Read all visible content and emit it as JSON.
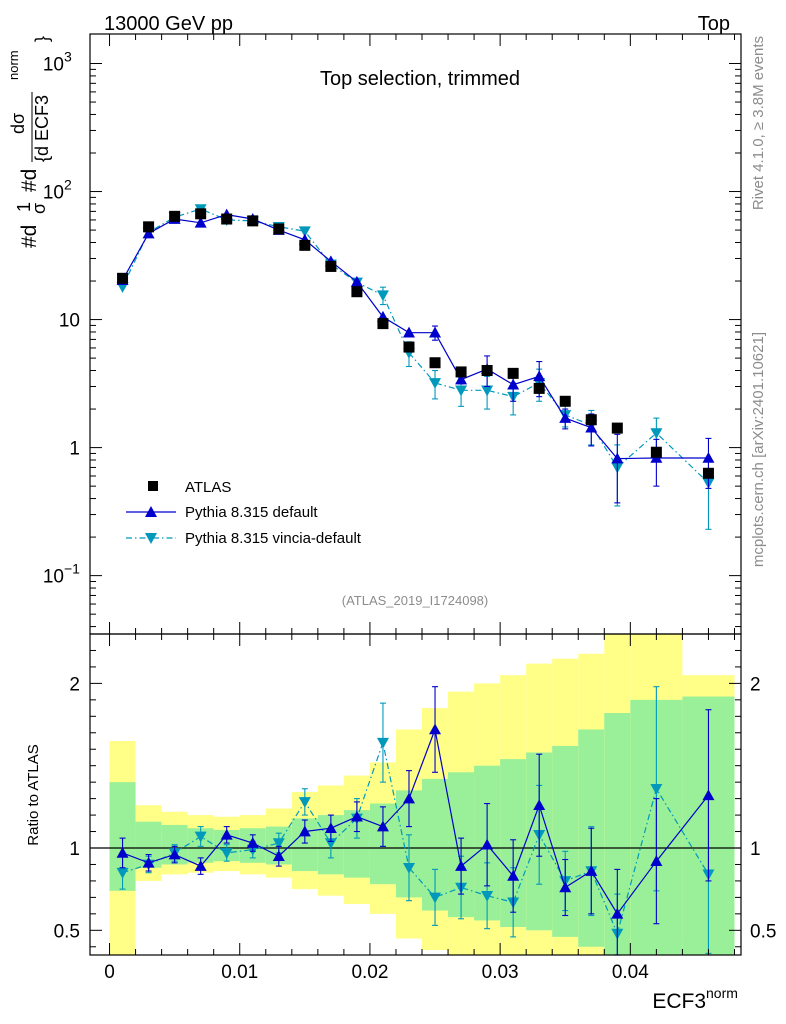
{
  "header": {
    "left": "13000 GeV pp",
    "right": "Top"
  },
  "side": {
    "top": "Rivet 4.1.0, ≥ 3.8M events",
    "bottom": "mcplots.cern.ch [arXiv:2401.10621]"
  },
  "chart_data": {
    "type": "scatter",
    "title": "Top selection, trimmed",
    "analysis_id": "(ATLAS_2019_I1724098)",
    "xlabel": "ECF3",
    "xlabel_sup": "norm",
    "ylabel": "#d¹/σ #d dσ/{d ECF3 norm}",
    "ylabel_parts": {
      "a": "#d",
      "b": "1",
      "c": "σ",
      "d": "#d",
      "e": "dσ",
      "f": "{d ECF3",
      "g": "norm",
      "h": "}"
    },
    "ratio_ylabel": "Ratio to ATLAS",
    "xlim": [
      -0.0015,
      0.0485
    ],
    "ylim": [
      0.035,
      1700
    ],
    "ratio_ylim": [
      0.35,
      2.3
    ],
    "x_ticks": [
      {
        "v": 0,
        "label": "0"
      },
      {
        "v": 0.01,
        "label": "0.01"
      },
      {
        "v": 0.02,
        "label": "0.02"
      },
      {
        "v": 0.03,
        "label": "0.03"
      },
      {
        "v": 0.04,
        "label": "0.04"
      }
    ],
    "y_ticks": [
      {
        "v": 0.1,
        "base": "10",
        "exp": "−1"
      },
      {
        "v": 1,
        "base": "1",
        "exp": ""
      },
      {
        "v": 10,
        "base": "10",
        "exp": ""
      },
      {
        "v": 100,
        "base": "10",
        "exp": "2"
      },
      {
        "v": 1000,
        "base": "10",
        "exp": "3"
      }
    ],
    "ratio_ticks": [
      {
        "v": 0.5,
        "label": "0.5"
      },
      {
        "v": 1,
        "label": "1"
      },
      {
        "v": 2,
        "label": "2"
      }
    ],
    "bin_edges": [
      0,
      0.002,
      0.004,
      0.006,
      0.008,
      0.01,
      0.012,
      0.014,
      0.016,
      0.018,
      0.02,
      0.022,
      0.024,
      0.026,
      0.028,
      0.03,
      0.032,
      0.034,
      0.036,
      0.038,
      0.04,
      0.044,
      0.048
    ],
    "x": [
      0.001,
      0.003,
      0.005,
      0.007,
      0.009,
      0.011,
      0.013,
      0.015,
      0.017,
      0.019,
      0.021,
      0.023,
      0.025,
      0.027,
      0.029,
      0.031,
      0.033,
      0.035,
      0.037,
      0.039,
      0.042,
      0.046
    ],
    "band_1sigma": {
      "lo": [
        0.74,
        0.88,
        0.9,
        0.91,
        0.92,
        0.91,
        0.9,
        0.86,
        0.84,
        0.82,
        0.78,
        0.7,
        0.62,
        0.58,
        0.56,
        0.52,
        0.5,
        0.46,
        0.4,
        0.35,
        0.35,
        0.35
      ],
      "hi": [
        1.4,
        1.16,
        1.14,
        1.12,
        1.11,
        1.12,
        1.13,
        1.18,
        1.2,
        1.23,
        1.27,
        1.35,
        1.42,
        1.46,
        1.5,
        1.54,
        1.58,
        1.62,
        1.72,
        1.82,
        1.9,
        1.92
      ]
    },
    "band_2sigma": {
      "lo": [
        0.35,
        0.8,
        0.84,
        0.85,
        0.86,
        0.84,
        0.82,
        0.75,
        0.71,
        0.66,
        0.6,
        0.45,
        0.38,
        0.35,
        0.35,
        0.35,
        0.35,
        0.35,
        0.35,
        0.35,
        0.35,
        0.46
      ],
      "hi": [
        1.65,
        1.26,
        1.22,
        1.2,
        1.19,
        1.2,
        1.24,
        1.34,
        1.38,
        1.44,
        1.52,
        1.72,
        1.85,
        1.95,
        2.0,
        2.05,
        2.12,
        2.15,
        2.18,
        2.3,
        2.3,
        2.05
      ]
    },
    "series": [
      {
        "name": "ATLAS",
        "marker": "square",
        "color": "#000000",
        "values": [
          21.0,
          53.0,
          64.0,
          67.0,
          61.0,
          59.0,
          51.0,
          38.0,
          26.0,
          16.5,
          9.3,
          6.1,
          4.6,
          3.9,
          4.0,
          3.8,
          2.9,
          2.3,
          1.65,
          1.42,
          0.92,
          0.63
        ]
      },
      {
        "name": "Pythia 8.315 default",
        "marker": "triangle-up",
        "color": "#0000cc",
        "line": "solid",
        "values": [
          20.3,
          47.0,
          61.0,
          57.0,
          66.0,
          61.0,
          50.0,
          42.0,
          28.5,
          19.7,
          10.5,
          7.9,
          7.9,
          3.4,
          4.1,
          3.1,
          3.6,
          1.7,
          1.43,
          0.82,
          0.83,
          0.83
        ],
        "errors": [
          0.0,
          0.0,
          0.0,
          0.0,
          0.0,
          0.0,
          0.0,
          0.0,
          0.0,
          0.0,
          0.0,
          0.0,
          1.0,
          0.25,
          1.1,
          0.8,
          1.1,
          0.3,
          0.4,
          0.45,
          0.33,
          0.35
        ],
        "ratio": [
          0.97,
          0.91,
          0.96,
          0.89,
          1.08,
          1.03,
          0.95,
          1.1,
          1.12,
          1.19,
          1.13,
          1.3,
          1.72,
          0.89,
          1.02,
          0.83,
          1.26,
          0.76,
          0.86,
          0.6,
          0.92,
          1.32
        ],
        "ratio_err": [
          0.09,
          0.05,
          0.05,
          0.05,
          0.05,
          0.05,
          0.06,
          0.07,
          0.08,
          0.09,
          0.12,
          0.17,
          0.26,
          0.17,
          0.25,
          0.22,
          0.31,
          0.17,
          0.26,
          0.27,
          0.38,
          0.52
        ]
      },
      {
        "name": "Pythia 8.315 vincia-default",
        "marker": "triangle-down",
        "color": "#0099bb",
        "line": "dashdot",
        "values": [
          18.0,
          48.0,
          63.0,
          73.0,
          60.0,
          59.0,
          53.0,
          49.0,
          27.0,
          19.5,
          15.5,
          5.5,
          3.2,
          2.8,
          2.8,
          2.5,
          3.2,
          1.8,
          1.5,
          0.7,
          1.3,
          0.53
        ],
        "errors": [
          0.0,
          0.0,
          0.0,
          0.0,
          0.0,
          0.0,
          0.0,
          0.0,
          0.0,
          0.0,
          2.4,
          1.2,
          0.8,
          0.7,
          0.8,
          0.7,
          0.9,
          0.35,
          0.45,
          0.35,
          0.4,
          0.3
        ],
        "ratio": [
          0.85,
          0.9,
          0.97,
          1.07,
          0.97,
          0.99,
          1.03,
          1.28,
          1.03,
          1.18,
          1.64,
          0.88,
          0.7,
          0.76,
          0.71,
          0.67,
          1.08,
          0.8,
          0.86,
          0.48,
          1.36,
          0.84
        ],
        "ratio_err": [
          0.1,
          0.05,
          0.05,
          0.06,
          0.05,
          0.05,
          0.06,
          0.08,
          0.09,
          0.12,
          0.24,
          0.2,
          0.17,
          0.19,
          0.2,
          0.21,
          0.3,
          0.18,
          0.27,
          0.24,
          0.62,
          0.48
        ]
      }
    ]
  }
}
